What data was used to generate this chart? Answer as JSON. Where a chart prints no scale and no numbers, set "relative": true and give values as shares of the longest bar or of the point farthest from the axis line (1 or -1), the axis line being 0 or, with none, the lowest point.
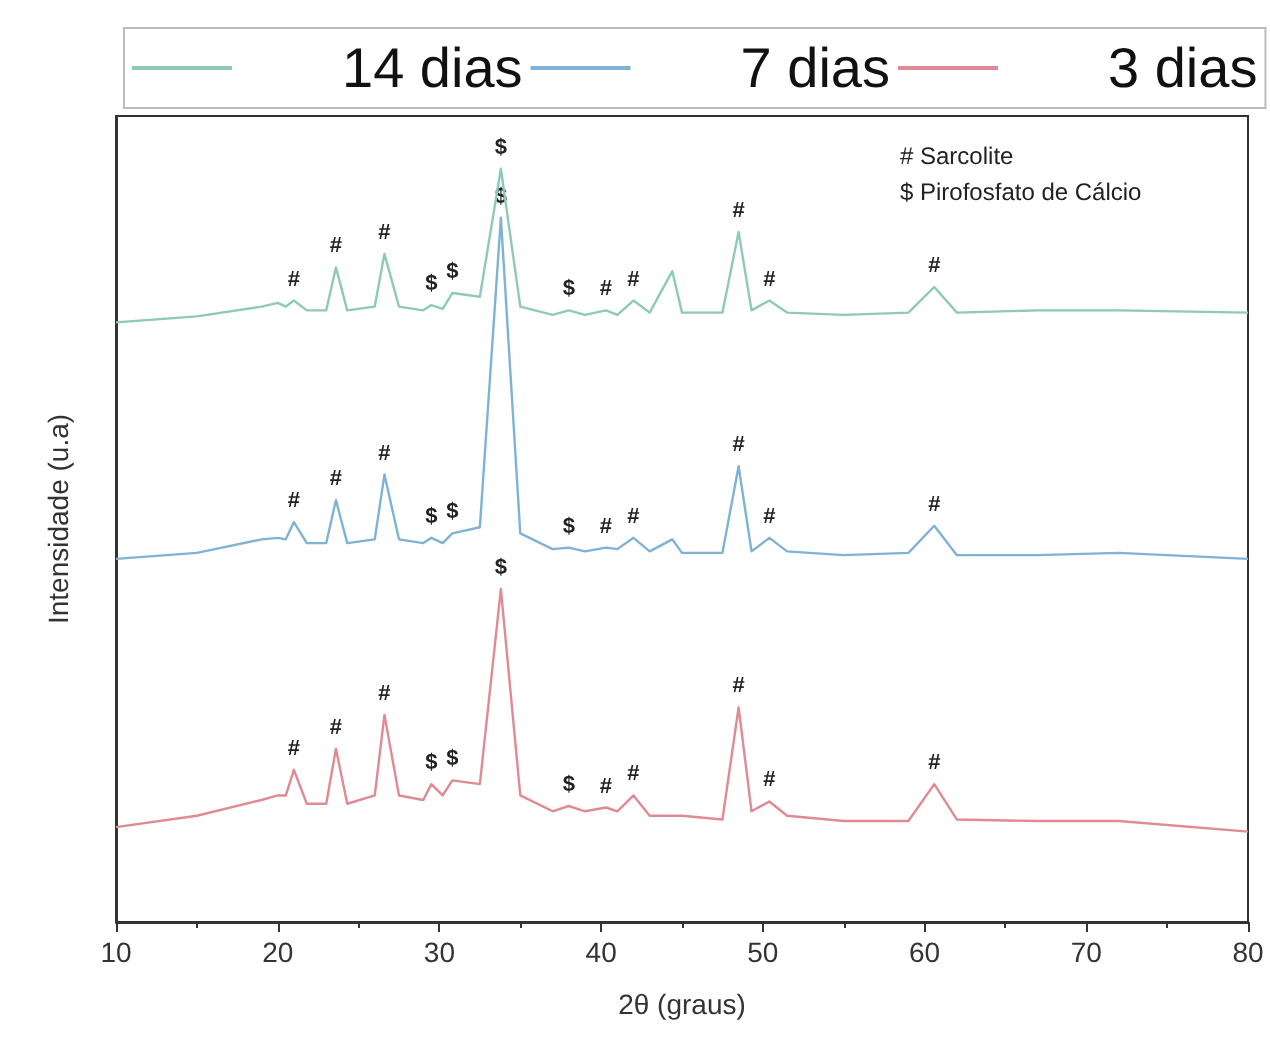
{
  "chart_data": {
    "type": "line",
    "relative": true,
    "xlabel": "2θ (graus)",
    "ylabel": "Intensidade (u.a)",
    "xlim": [
      10,
      80
    ],
    "xticks": [
      10,
      20,
      30,
      40,
      50,
      60,
      70,
      80
    ],
    "grid": false,
    "legend": "top",
    "marker": "none",
    "line_style": "solid",
    "x": [
      10,
      15,
      19,
      20,
      20.5,
      21,
      21.8,
      23,
      23.6,
      24.3,
      26,
      26.6,
      27.5,
      29,
      29.5,
      30.2,
      30.8,
      32.5,
      33.8,
      35,
      37,
      38,
      39,
      40.3,
      41,
      42,
      43,
      44.4,
      45,
      47.5,
      48.5,
      49.3,
      50.4,
      51.5,
      55,
      59,
      60.6,
      62,
      67,
      72,
      80
    ],
    "series": [
      {
        "name": "14 dias",
        "color": "#8fc9b9",
        "values": [
          0.796,
          0.804,
          0.817,
          0.822,
          0.817,
          0.825,
          0.812,
          0.812,
          0.869,
          0.812,
          0.817,
          0.887,
          0.817,
          0.812,
          0.819,
          0.814,
          0.835,
          0.83,
          1.0,
          0.817,
          0.806,
          0.812,
          0.806,
          0.812,
          0.806,
          0.825,
          0.809,
          0.864,
          0.809,
          0.809,
          0.916,
          0.812,
          0.825,
          0.809,
          0.806,
          0.809,
          0.843,
          0.809,
          0.812,
          0.812,
          0.809
        ]
      },
      {
        "name": "7 dias",
        "color": "#7fb3d5",
        "values": [
          0.482,
          0.49,
          0.508,
          0.51,
          0.508,
          0.531,
          0.503,
          0.503,
          0.56,
          0.503,
          0.508,
          0.594,
          0.508,
          0.503,
          0.51,
          0.503,
          0.516,
          0.524,
          0.935,
          0.516,
          0.495,
          0.497,
          0.492,
          0.497,
          0.495,
          0.51,
          0.492,
          0.508,
          0.49,
          0.49,
          0.605,
          0.492,
          0.51,
          0.492,
          0.487,
          0.49,
          0.526,
          0.487,
          0.487,
          0.49,
          0.482
        ]
      },
      {
        "name": "3 dias",
        "color": "#e08a93",
        "values": [
          0.126,
          0.141,
          0.162,
          0.168,
          0.168,
          0.202,
          0.157,
          0.157,
          0.23,
          0.157,
          0.168,
          0.275,
          0.168,
          0.162,
          0.183,
          0.168,
          0.188,
          0.183,
          0.442,
          0.168,
          0.147,
          0.154,
          0.147,
          0.152,
          0.147,
          0.168,
          0.141,
          0.141,
          0.141,
          0.136,
          0.285,
          0.147,
          0.16,
          0.141,
          0.134,
          0.134,
          0.183,
          0.136,
          0.134,
          0.134,
          0.12
        ]
      }
    ],
    "annotations": [
      "# Sarcolite",
      "$ Pirofosfato de Cálcio",
      {
        "text": "#",
        "x": 21,
        "y": 0.825
      },
      {
        "text": "#",
        "x": 23.6,
        "y": 0.869
      },
      {
        "text": "#",
        "x": 26.6,
        "y": 0.887
      },
      {
        "text": "$",
        "x": 29.5,
        "y": 0.819
      },
      {
        "text": "$",
        "x": 30.8,
        "y": 0.835
      },
      {
        "text": "$",
        "x": 33.8,
        "y": 1.0
      },
      {
        "text": "$",
        "x": 38,
        "y": 0.812
      },
      {
        "text": "#",
        "x": 40.3,
        "y": 0.812
      },
      {
        "text": "#",
        "x": 42,
        "y": 0.825
      },
      {
        "text": "#",
        "x": 48.5,
        "y": 0.916
      },
      {
        "text": "#",
        "x": 50.4,
        "y": 0.825
      },
      {
        "text": "#",
        "x": 60.6,
        "y": 0.843
      },
      {
        "text": "#",
        "x": 21,
        "y": 0.531
      },
      {
        "text": "#",
        "x": 23.6,
        "y": 0.56
      },
      {
        "text": "#",
        "x": 26.6,
        "y": 0.594
      },
      {
        "text": "$",
        "x": 29.5,
        "y": 0.51
      },
      {
        "text": "$",
        "x": 30.8,
        "y": 0.516
      },
      {
        "text": "$",
        "x": 33.8,
        "y": 0.935
      },
      {
        "text": "$",
        "x": 38,
        "y": 0.497
      },
      {
        "text": "#",
        "x": 40.3,
        "y": 0.497
      },
      {
        "text": "#",
        "x": 42,
        "y": 0.51
      },
      {
        "text": "#",
        "x": 48.5,
        "y": 0.605
      },
      {
        "text": "#",
        "x": 50.4,
        "y": 0.51
      },
      {
        "text": "#",
        "x": 60.6,
        "y": 0.526
      },
      {
        "text": "#",
        "x": 21,
        "y": 0.202
      },
      {
        "text": "#",
        "x": 23.6,
        "y": 0.23
      },
      {
        "text": "#",
        "x": 26.6,
        "y": 0.275
      },
      {
        "text": "$",
        "x": 29.5,
        "y": 0.183
      },
      {
        "text": "$",
        "x": 30.8,
        "y": 0.188
      },
      {
        "text": "$",
        "x": 33.8,
        "y": 0.442
      },
      {
        "text": "$",
        "x": 38,
        "y": 0.154
      },
      {
        "text": "#",
        "x": 40.3,
        "y": 0.152
      },
      {
        "text": "#",
        "x": 42,
        "y": 0.168
      },
      {
        "text": "#",
        "x": 48.5,
        "y": 0.285
      },
      {
        "text": "#",
        "x": 50.4,
        "y": 0.16
      },
      {
        "text": "#",
        "x": 60.6,
        "y": 0.183
      }
    ]
  }
}
